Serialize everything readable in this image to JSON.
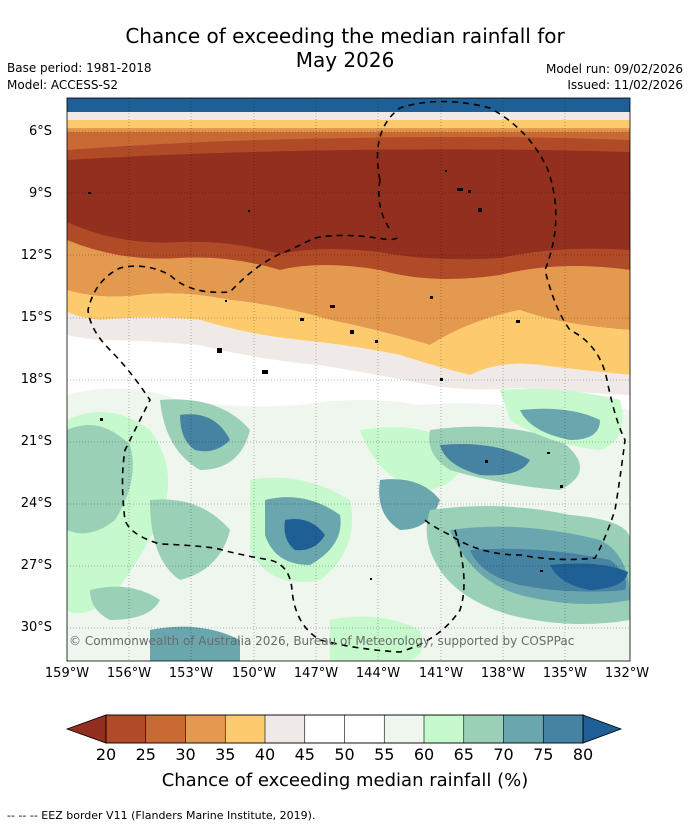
{
  "title_line1": "Chance of exceeding the median rainfall for",
  "title_line2": "May 2026",
  "base_period": "Base period: 1981-2018",
  "model": "Model: ACCESS-S2",
  "model_run": "Model run: 09/02/2026",
  "issued": "Issued: 11/02/2026",
  "copyright": "© Commonwealth of Australia 2026, Bureau of Meteorology, supported by COSPPac",
  "lat_labels": [
    "6°S",
    "9°S",
    "12°S",
    "15°S",
    "18°S",
    "21°S",
    "24°S",
    "27°S",
    "30°S"
  ],
  "lon_labels": [
    "159°W",
    "156°W",
    "153°W",
    "150°W",
    "147°W",
    "144°W",
    "141°W",
    "138°W",
    "135°W",
    "132°W"
  ],
  "colorbar": {
    "ticks": [
      "20",
      "25",
      "30",
      "35",
      "40",
      "45",
      "50",
      "55",
      "60",
      "65",
      "70",
      "75",
      "80"
    ],
    "colors": [
      "#922f1f",
      "#b04a27",
      "#c96a34",
      "#e39a4e",
      "#fdcb6e",
      "#efe9e7",
      "#ffffff",
      "#ffffff",
      "#eef6ee",
      "#c6f9cc",
      "#9ad0b6",
      "#6aa6ad",
      "#4682a1",
      "#1e5f96"
    ],
    "label": "Chance of exceeding median rainfall (%)"
  },
  "footer": "--  --  -- EEZ border V11 (Flanders Marine Institute, 2019)."
}
